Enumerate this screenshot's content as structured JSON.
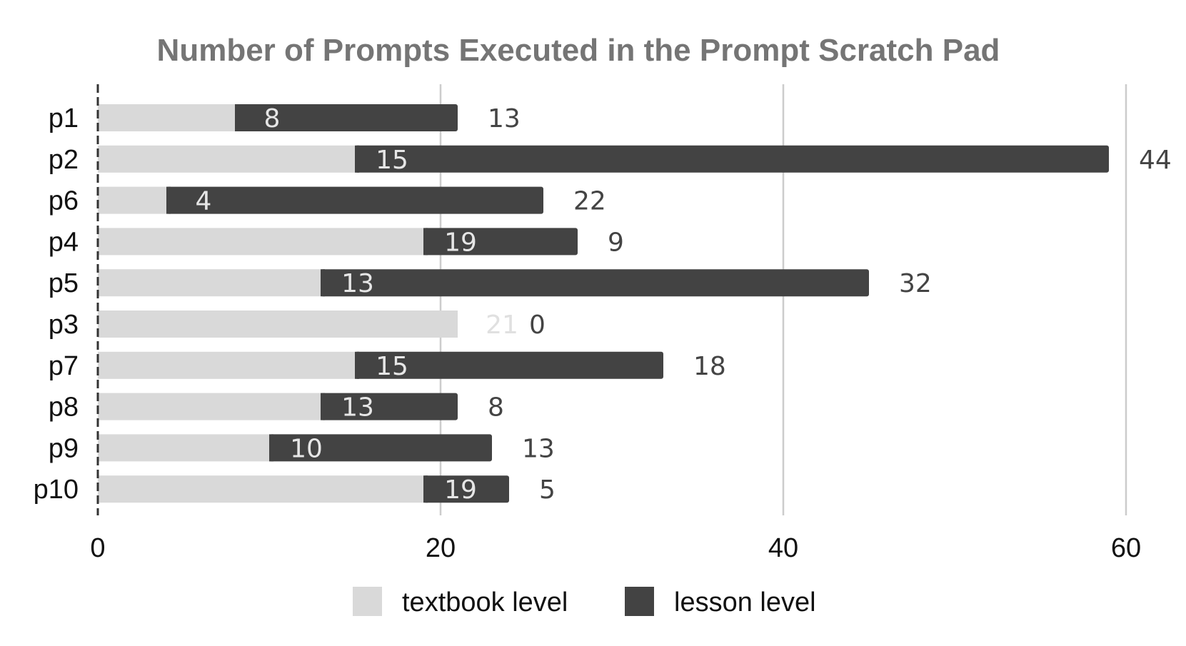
{
  "chart_data": {
    "type": "bar",
    "orientation": "horizontal",
    "stacked": true,
    "title": "Number of Prompts Executed in the Prompt Scratch Pad",
    "xlabel": "",
    "ylabel": "",
    "categories": [
      "p1",
      "p2",
      "p6",
      "p4",
      "p5",
      "p3",
      "p7",
      "p8",
      "p9",
      "p10"
    ],
    "series": [
      {
        "name": "textbook level",
        "color": "#d9d9d9",
        "values": [
          8,
          15,
          4,
          19,
          13,
          21,
          15,
          13,
          10,
          19
        ]
      },
      {
        "name": "lesson level",
        "color": "#434343",
        "values": [
          13,
          44,
          22,
          9,
          32,
          0,
          18,
          8,
          13,
          5
        ]
      }
    ],
    "xlim": [
      0,
      60
    ],
    "xticks": [
      0,
      20,
      40,
      60
    ],
    "xtick_labels": [
      "0",
      "20",
      "40",
      "60"
    ],
    "grid": true,
    "legend_position": "bottom"
  }
}
